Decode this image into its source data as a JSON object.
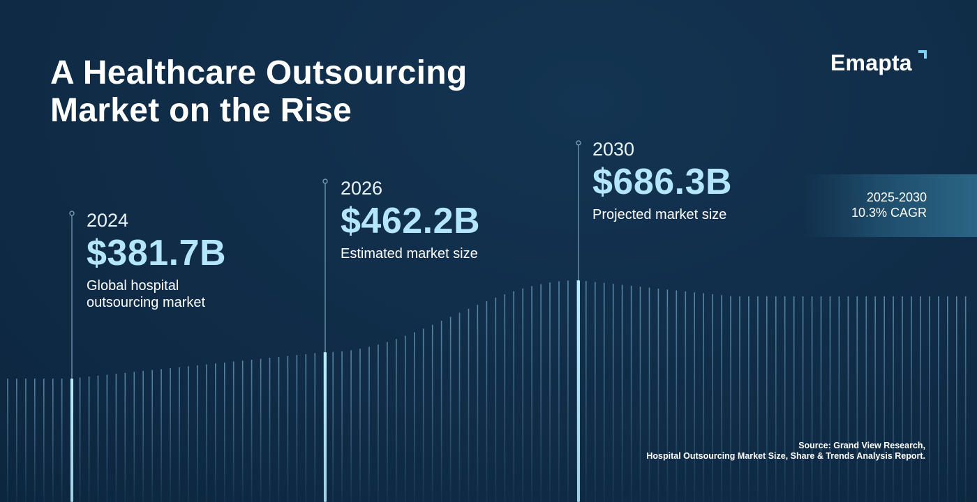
{
  "title_line1": "A Healthcare Outsourcing",
  "title_line2": "Market on the Rise",
  "brand": {
    "name": "Emapta",
    "accent_color": "#7fd3f2"
  },
  "stats": [
    {
      "year": "2024",
      "value": "$381.7B",
      "desc_line1": "Global hospital",
      "desc_line2": "outsourcing market"
    },
    {
      "year": "2026",
      "value": "$462.2B",
      "desc_line1": "Estimated market size",
      "desc_line2": ""
    },
    {
      "year": "2030",
      "value": "$686.3B",
      "desc_line1": "Projected market size",
      "desc_line2": ""
    }
  ],
  "cagr": {
    "period": "2025-2030",
    "rate": "10.3% CAGR"
  },
  "source": {
    "line1": "Source: Grand View Research,",
    "line2": "Hospital Outsourcing Market Size, Share & Trends Analysis Report."
  },
  "colors": {
    "background": "#102c47",
    "value_text": "#b4e6fb",
    "bar": "#8fd0ee",
    "highlight_bar": "#b8ecff"
  },
  "chart_data": {
    "type": "bar",
    "categories": [
      "2024",
      "2026",
      "2030"
    ],
    "values": [
      381.7,
      462.2,
      686.3
    ],
    "title": "A Healthcare Outsourcing Market on the Rise",
    "xlabel": "",
    "ylabel": "",
    "ylim": [
      0,
      750
    ],
    "grid": false,
    "legend": "none"
  }
}
